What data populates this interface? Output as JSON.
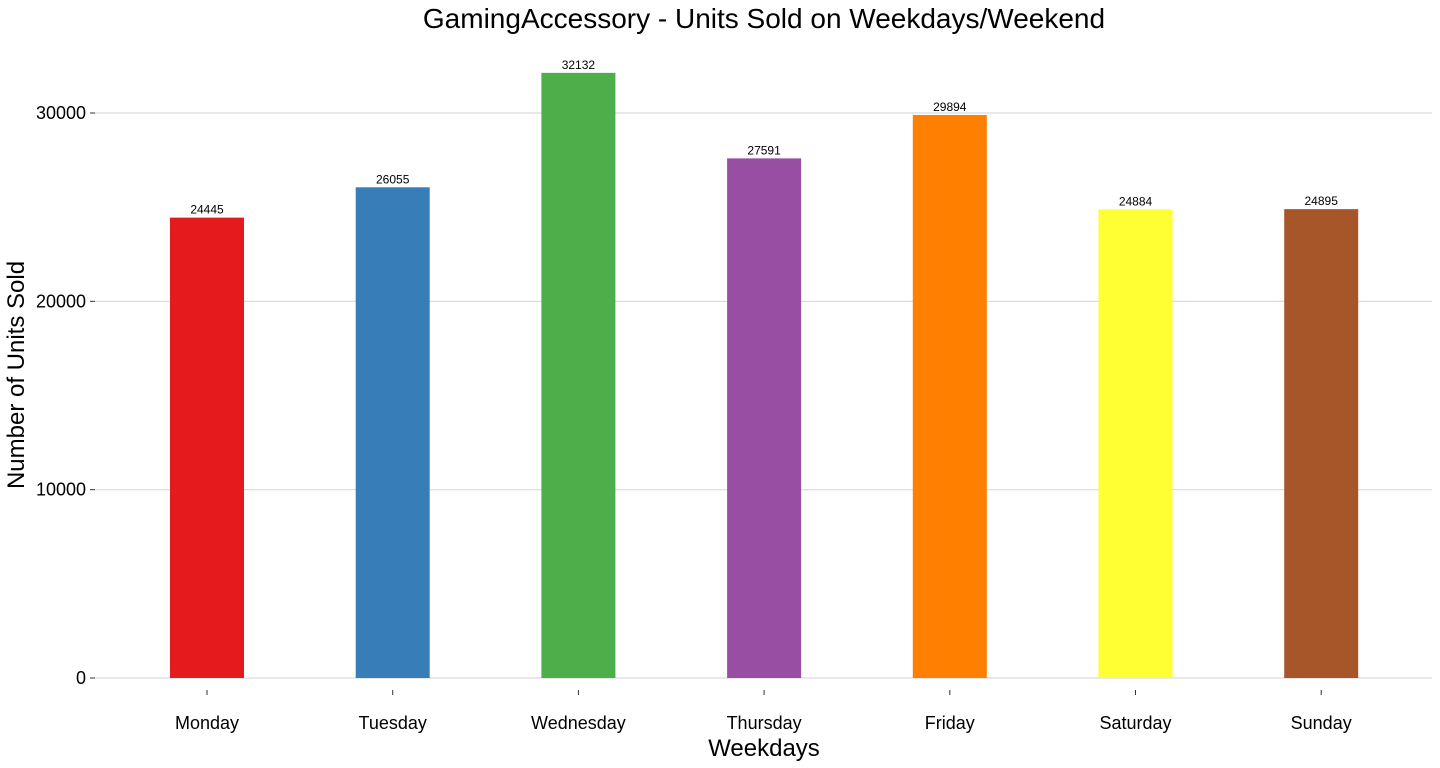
{
  "chart_data": {
    "type": "bar",
    "title": "GamingAccessory - Units Sold on Weekdays/Weekend",
    "xlabel": "Weekdays",
    "ylabel": "Number of Units Sold",
    "categories": [
      "Monday",
      "Tuesday",
      "Wednesday",
      "Thursday",
      "Friday",
      "Saturday",
      "Sunday"
    ],
    "values": [
      24445,
      26055,
      32132,
      27591,
      29894,
      24884,
      24895
    ],
    "data_labels": [
      "24445",
      "26055",
      "32132",
      "27591",
      "29894",
      "24884",
      "24895"
    ],
    "colors": [
      "#e41a1c",
      "#377eb8",
      "#4daf4a",
      "#984ea3",
      "#ff7f00",
      "#ffff33",
      "#a65628"
    ],
    "yticks": [
      0,
      10000,
      20000,
      30000
    ],
    "ytick_labels": [
      "0",
      "10000",
      "20000",
      "30000"
    ],
    "ylim": [
      0,
      32132
    ],
    "grid": true,
    "legend": "none"
  }
}
